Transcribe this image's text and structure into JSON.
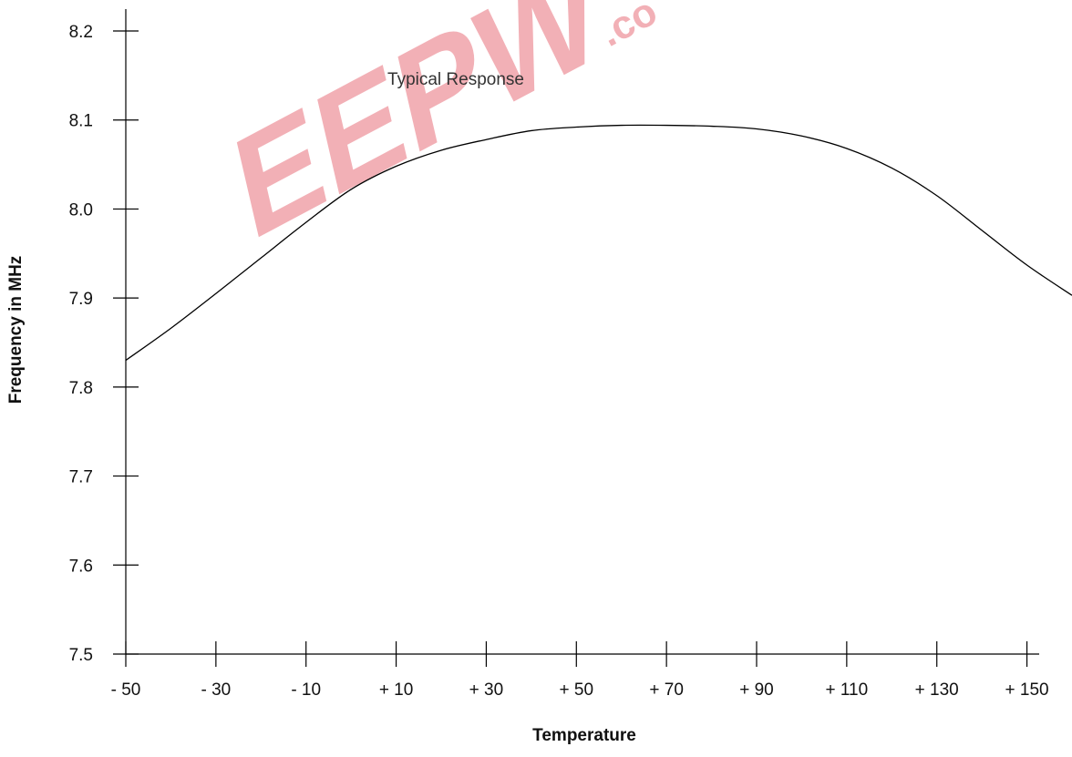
{
  "chart_data": {
    "type": "line",
    "title": "",
    "xlabel": "Temperature",
    "ylabel": "Frequency in MHz",
    "x_tick_labels": [
      "- 50",
      "- 30",
      "- 10",
      "+ 10",
      "+ 30",
      "+ 50",
      "+ 70",
      "+ 90",
      "+ 110",
      "+ 130",
      "+ 150"
    ],
    "x_ticks": [
      -50,
      -30,
      -10,
      10,
      30,
      50,
      70,
      90,
      110,
      130,
      150
    ],
    "y_tick_labels": [
      "7.5",
      "7.6",
      "7.7",
      "7.8",
      "7.9",
      "8.0",
      "8.1",
      "8.2"
    ],
    "y_ticks": [
      7.5,
      7.6,
      7.7,
      7.8,
      7.9,
      8.0,
      8.1,
      8.2
    ],
    "xlim": [
      -50,
      160
    ],
    "ylim": [
      7.5,
      8.2
    ],
    "grid": false,
    "annotation": "Typical Response",
    "series": [
      {
        "x": [
          -50,
          -40,
          -30,
          -20,
          -10,
          0,
          10,
          20,
          30,
          40,
          50,
          60,
          70,
          80,
          90,
          100,
          110,
          120,
          130,
          140,
          150,
          160
        ],
        "y": [
          7.83,
          7.866,
          7.905,
          7.945,
          7.985,
          8.022,
          8.048,
          8.066,
          8.078,
          8.088,
          8.092,
          8.094,
          8.094,
          8.093,
          8.09,
          8.082,
          8.068,
          8.046,
          8.015,
          7.976,
          7.937,
          7.903
        ]
      }
    ],
    "colors": {
      "line": "#000000",
      "axis": "#000000",
      "watermark": "#e8707c"
    }
  },
  "watermark": {
    "logo_text": "EEPW",
    "suffix_text": ".co"
  }
}
